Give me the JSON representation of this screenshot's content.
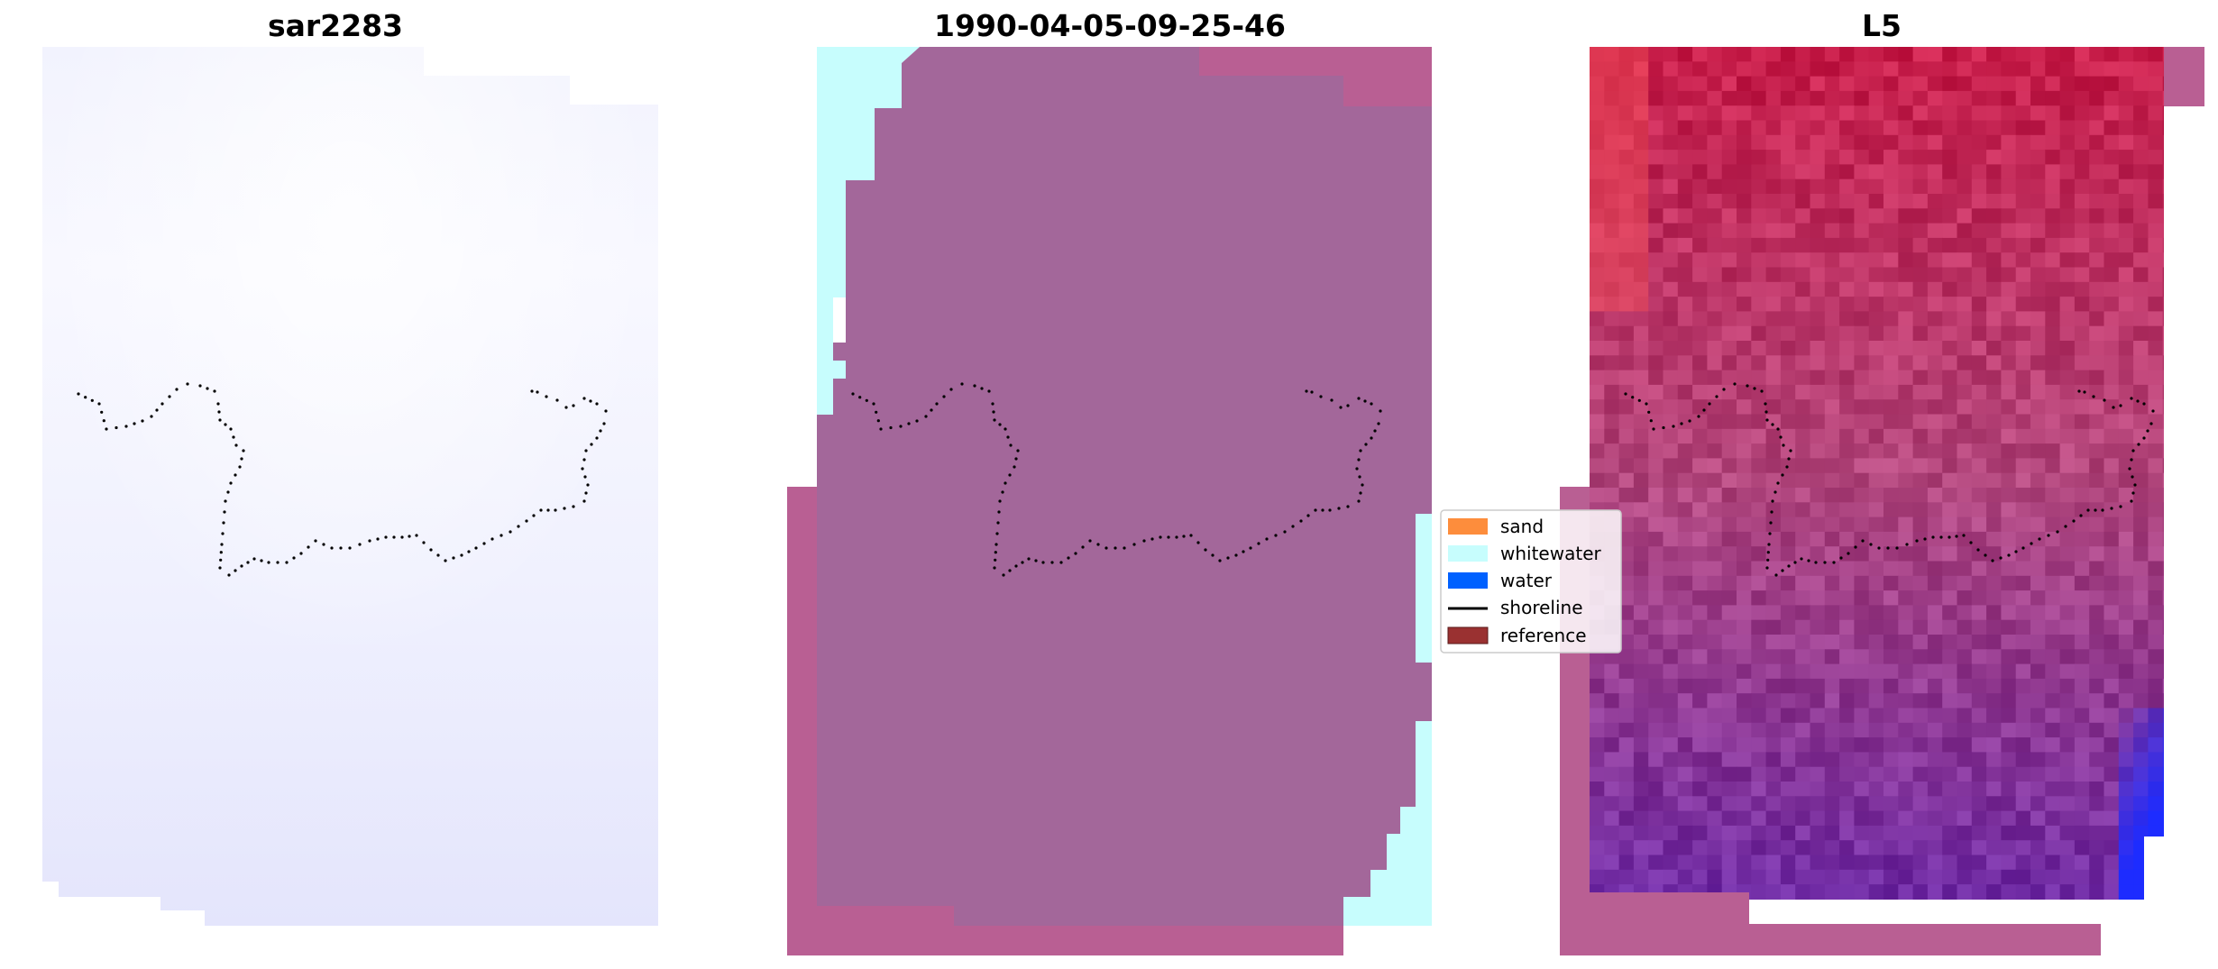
{
  "panels": [
    {
      "title": "sar2283"
    },
    {
      "title": "1990-04-05-09-25-46"
    },
    {
      "title": "L5"
    }
  ],
  "legend": {
    "items": [
      {
        "label": "sand",
        "color": "#fd8d3c",
        "symbol": "patch"
      },
      {
        "label": "whitewater",
        "color": "#c7fdfd",
        "symbol": "patch"
      },
      {
        "label": "water",
        "color": "#0061ff",
        "symbol": "patch"
      },
      {
        "label": "shoreline",
        "color": "#000000",
        "symbol": "line"
      },
      {
        "label": "reference",
        "color": "#9a3131",
        "symbol": "patch"
      }
    ]
  },
  "colors": {
    "classified_overlay": "#a3679a",
    "overlay_border": "#b95f93",
    "whitewater": "#c7fdfd",
    "sar_tint": "#eef0fd",
    "l5_red": "#d0204a",
    "l5_purple": "#6c2aa4",
    "l5_blue": "#1b2cff",
    "shoreline_dots": "#000000"
  }
}
